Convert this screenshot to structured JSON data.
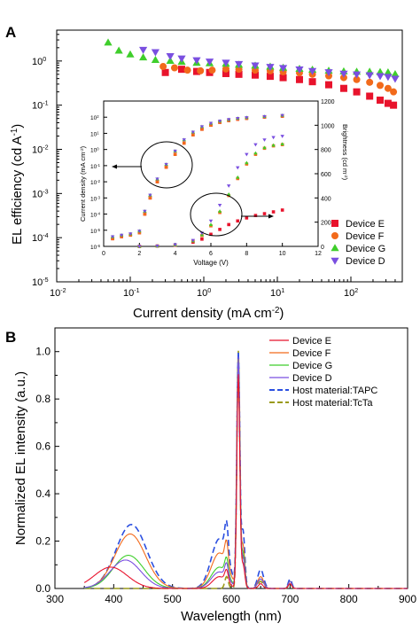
{
  "panels": {
    "a_label": "A",
    "b_label": "B"
  },
  "colors": {
    "E": "#e8132c",
    "F": "#f26a1b",
    "G": "#3fce2b",
    "D": "#7a4fe0",
    "TAPC": "#2b4fe0",
    "TcTa": "#9a9a1a"
  },
  "chart_data": [
    {
      "type": "scatter",
      "panel": "A",
      "xlabel": "Current density (mA cm",
      "xlabel_sup": "-2",
      "xlabel_end": ")",
      "ylabel": "EL efficiency (cd A",
      "ylabel_sup": "-1",
      "ylabel_end": ")",
      "xscale": "log",
      "yscale": "log",
      "xlim": [
        0.01,
        500
      ],
      "ylim": [
        1e-05,
        5
      ],
      "xticks": [
        {
          "v": 0.01,
          "b": "10",
          "e": "-2"
        },
        {
          "v": 0.1,
          "b": "10",
          "e": "-1"
        },
        {
          "v": 1,
          "b": "10",
          "e": "0"
        },
        {
          "v": 10,
          "b": "10",
          "e": "1"
        },
        {
          "v": 100,
          "b": "10",
          "e": "2"
        }
      ],
      "yticks": [
        {
          "v": 1e-05,
          "b": "10",
          "e": "-5"
        },
        {
          "v": 0.0001,
          "b": "10",
          "e": "-4"
        },
        {
          "v": 0.001,
          "b": "10",
          "e": "-3"
        },
        {
          "v": 0.01,
          "b": "10",
          "e": "-2"
        },
        {
          "v": 0.1,
          "b": "10",
          "e": "-1"
        },
        {
          "v": 1,
          "b": "10",
          "e": "0"
        }
      ],
      "legend": {
        "placement": "bottom-right",
        "entries": [
          "Device E",
          "Device F",
          "Device G",
          "Device D"
        ]
      },
      "series": [
        {
          "name": "Device E",
          "marker": "square",
          "color_key": "E",
          "x": [
            0.3,
            0.5,
            0.8,
            1.2,
            2,
            3,
            5,
            8,
            12,
            20,
            30,
            50,
            80,
            120,
            180,
            250,
            320,
            380
          ],
          "y": [
            0.55,
            0.65,
            0.58,
            0.55,
            0.52,
            0.5,
            0.48,
            0.45,
            0.42,
            0.38,
            0.34,
            0.29,
            0.24,
            0.2,
            0.16,
            0.13,
            0.11,
            0.1
          ]
        },
        {
          "name": "Device F",
          "marker": "circle",
          "color_key": "F",
          "x": [
            0.28,
            0.4,
            0.6,
            0.9,
            1.3,
            2,
            3,
            5,
            8,
            12,
            20,
            30,
            50,
            80,
            120,
            180,
            250,
            320,
            380
          ],
          "y": [
            0.75,
            0.7,
            0.62,
            0.6,
            0.62,
            0.66,
            0.65,
            0.62,
            0.6,
            0.57,
            0.54,
            0.5,
            0.46,
            0.42,
            0.38,
            0.33,
            0.28,
            0.24,
            0.2
          ]
        },
        {
          "name": "Device G",
          "marker": "triangle-up",
          "color_key": "G",
          "x": [
            0.05,
            0.07,
            0.1,
            0.15,
            0.22,
            0.35,
            0.5,
            0.8,
            1.2,
            2,
            3,
            5,
            8,
            12,
            20,
            30,
            50,
            80,
            120,
            180,
            250,
            320,
            400
          ],
          "y": [
            2.6,
            1.7,
            1.4,
            1.2,
            1.05,
            1.0,
            0.95,
            0.9,
            0.88,
            0.86,
            0.82,
            0.78,
            0.74,
            0.7,
            0.66,
            0.63,
            0.6,
            0.58,
            0.57,
            0.57,
            0.56,
            0.55,
            0.5
          ]
        },
        {
          "name": "Device D",
          "marker": "triangle-down",
          "color_key": "D",
          "x": [
            0.15,
            0.22,
            0.35,
            0.5,
            0.8,
            1.2,
            2,
            3,
            5,
            8,
            12,
            20,
            30,
            50,
            80,
            120,
            180,
            250,
            320,
            400
          ],
          "y": [
            1.8,
            1.6,
            1.3,
            1.15,
            1.05,
            0.98,
            0.92,
            0.86,
            0.8,
            0.74,
            0.7,
            0.65,
            0.6,
            0.56,
            0.52,
            0.5,
            0.48,
            0.46,
            0.44,
            0.4
          ]
        }
      ]
    },
    {
      "type": "scatter",
      "panel": "A-inset",
      "xlabel": "Voltage (V)",
      "ylabel": "Current density (mA cm",
      "ylabel_sup": "-2",
      "ylabel_end": ")",
      "y2label": "Brightness (cd m",
      "y2label_sup": "-2",
      "y2label_end": ")",
      "xlim": [
        0,
        12
      ],
      "ylim": [
        1e-06,
        1000
      ],
      "y2lim": [
        0,
        1200
      ],
      "yscale": "log",
      "xticks": [
        "0",
        "2",
        "4",
        "6",
        "8",
        "10",
        "12"
      ],
      "yticks": [
        {
          "v": 1e-06,
          "e": "-6"
        },
        {
          "v": 1e-05,
          "e": "-5"
        },
        {
          "v": 0.0001,
          "e": "-4"
        },
        {
          "v": 0.001,
          "e": "-3"
        },
        {
          "v": 0.01,
          "e": "-2"
        },
        {
          "v": 0.1,
          "e": "-1"
        },
        {
          "v": 1,
          "e": "0"
        },
        {
          "v": 10,
          "e": "1"
        },
        {
          "v": 100,
          "e": "2"
        }
      ],
      "y2ticks": [
        "0",
        "200",
        "400",
        "600",
        "800",
        "1000",
        "1200"
      ],
      "current_density": {
        "x": [
          0.5,
          1,
          1.5,
          2,
          2.3,
          2.6,
          3,
          3.5,
          4,
          4.5,
          5,
          5.5,
          6,
          6.5,
          7,
          7.5,
          8,
          9,
          10
        ],
        "y": {
          "E": [
            3e-06,
            4e-06,
            5e-06,
            7e-06,
            0.0001,
            0.001,
            0.01,
            0.08,
            0.5,
            2.5,
            8,
            18,
            32,
            48,
            62,
            75,
            85,
            100,
            115
          ],
          "F": [
            3e-06,
            4e-06,
            5e-06,
            7e-06,
            0.0001,
            0.001,
            0.01,
            0.08,
            0.5,
            2.5,
            8,
            18,
            32,
            48,
            62,
            75,
            85,
            100,
            115
          ],
          "G": [
            4e-06,
            5e-06,
            6e-06,
            9e-06,
            0.00015,
            0.0015,
            0.015,
            0.12,
            0.8,
            4,
            12,
            26,
            42,
            58,
            72,
            85,
            95,
            110,
            130
          ],
          "D": [
            4e-06,
            5e-06,
            6e-06,
            9e-06,
            0.00015,
            0.0015,
            0.015,
            0.12,
            0.8,
            4,
            12,
            26,
            42,
            58,
            72,
            85,
            95,
            110,
            130
          ]
        }
      },
      "brightness": {
        "x": [
          2,
          3,
          4,
          5,
          5.5,
          6,
          6.5,
          7,
          7.5,
          8,
          8.5,
          9,
          9.5,
          10
        ],
        "y": {
          "E": [
            0,
            3,
            10,
            35,
            60,
            100,
            140,
            180,
            210,
            235,
            255,
            270,
            285,
            300
          ],
          "F": [
            0,
            3,
            12,
            45,
            90,
            170,
            280,
            420,
            560,
            680,
            760,
            810,
            830,
            840
          ],
          "G": [
            0,
            3,
            12,
            45,
            95,
            180,
            290,
            430,
            570,
            690,
            770,
            815,
            835,
            845
          ],
          "D": [
            0,
            3,
            14,
            50,
            110,
            210,
            340,
            500,
            650,
            760,
            840,
            880,
            900,
            910
          ]
        }
      }
    },
    {
      "type": "line",
      "panel": "B",
      "xlabel": "Wavelength (nm)",
      "ylabel": "Normalized EL intensity (a.u.)",
      "xlim": [
        300,
        900
      ],
      "ylim": [
        0,
        1.1
      ],
      "xticks": [
        "300",
        "400",
        "500",
        "600",
        "700",
        "800",
        "900"
      ],
      "yticks": [
        "0.0",
        "0.2",
        "0.4",
        "0.6",
        "0.8",
        "1.0"
      ],
      "legend": {
        "placement": "top-right"
      },
      "series": [
        {
          "name": "Device E",
          "color_key": "E",
          "dash": false,
          "peaks": [
            {
              "c": 395,
              "h": 0.09,
              "w": 28
            },
            {
              "c": 580,
              "h": 0.05,
              "w": 12
            },
            {
              "c": 612,
              "h": 0.9,
              "w": 2.5
            },
            {
              "c": 592,
              "h": 0.05,
              "w": 3
            },
            {
              "c": 620,
              "h": 0.1,
              "w": 3
            },
            {
              "c": 650,
              "h": 0.02,
              "w": 4
            },
            {
              "c": 700,
              "h": 0.02,
              "w": 3
            }
          ]
        },
        {
          "name": "Device F",
          "color_key": "F",
          "dash": false,
          "peaks": [
            {
              "c": 428,
              "h": 0.23,
              "w": 26
            },
            {
              "c": 580,
              "h": 0.15,
              "w": 14
            },
            {
              "c": 612,
              "h": 0.95,
              "w": 2.5
            },
            {
              "c": 592,
              "h": 0.1,
              "w": 3
            },
            {
              "c": 620,
              "h": 0.18,
              "w": 3
            },
            {
              "c": 650,
              "h": 0.05,
              "w": 5
            },
            {
              "c": 700,
              "h": 0.03,
              "w": 3
            }
          ]
        },
        {
          "name": "Device G",
          "color_key": "G",
          "dash": false,
          "peaks": [
            {
              "c": 425,
              "h": 0.14,
              "w": 26
            },
            {
              "c": 580,
              "h": 0.09,
              "w": 14
            },
            {
              "c": 612,
              "h": 0.96,
              "w": 2.5
            },
            {
              "c": 592,
              "h": 0.07,
              "w": 3
            },
            {
              "c": 620,
              "h": 0.15,
              "w": 3
            },
            {
              "c": 650,
              "h": 0.04,
              "w": 5
            },
            {
              "c": 700,
              "h": 0.03,
              "w": 3
            }
          ]
        },
        {
          "name": "Device D",
          "color_key": "D",
          "dash": false,
          "peaks": [
            {
              "c": 420,
              "h": 0.12,
              "w": 26
            },
            {
              "c": 580,
              "h": 0.07,
              "w": 14
            },
            {
              "c": 612,
              "h": 0.97,
              "w": 2.5
            },
            {
              "c": 592,
              "h": 0.06,
              "w": 3
            },
            {
              "c": 620,
              "h": 0.13,
              "w": 3
            },
            {
              "c": 650,
              "h": 0.04,
              "w": 5
            },
            {
              "c": 700,
              "h": 0.03,
              "w": 3
            }
          ]
        },
        {
          "name": "Host material:TAPC",
          "color_key": "TAPC",
          "dash": true,
          "peaks": [
            {
              "c": 430,
              "h": 0.27,
              "w": 26
            },
            {
              "c": 580,
              "h": 0.21,
              "w": 14
            },
            {
              "c": 612,
              "h": 0.98,
              "w": 2.5
            },
            {
              "c": 592,
              "h": 0.14,
              "w": 3
            },
            {
              "c": 620,
              "h": 0.24,
              "w": 3
            },
            {
              "c": 650,
              "h": 0.08,
              "w": 5
            },
            {
              "c": 700,
              "h": 0.04,
              "w": 3
            }
          ]
        },
        {
          "name": "Host material:TcTa",
          "color_key": "TcTa",
          "dash": true,
          "peaks": [
            {
              "c": 612,
              "h": 1.0,
              "w": 2.5
            },
            {
              "c": 592,
              "h": 0.05,
              "w": 3
            },
            {
              "c": 620,
              "h": 0.12,
              "w": 3
            },
            {
              "c": 650,
              "h": 0.03,
              "w": 4
            },
            {
              "c": 700,
              "h": 0.02,
              "w": 3
            }
          ]
        }
      ]
    }
  ]
}
